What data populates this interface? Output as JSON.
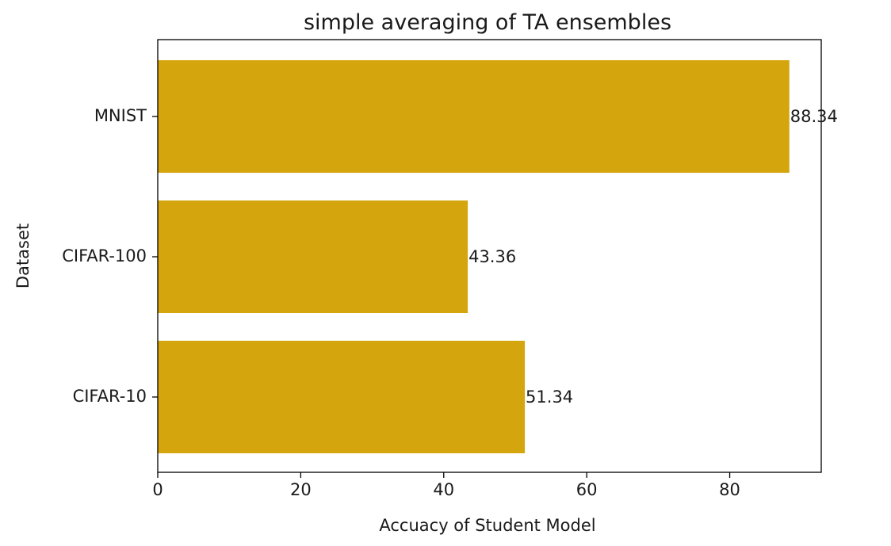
{
  "chart_data": {
    "type": "bar",
    "orientation": "horizontal",
    "title": "simple averaging of TA ensembles",
    "xlabel": "Accuacy of Student Model",
    "ylabel": "Dataset",
    "categories": [
      "CIFAR-10",
      "CIFAR-100",
      "MNIST"
    ],
    "values": [
      51.34,
      43.36,
      88.34
    ],
    "value_labels": [
      "51.34",
      "43.36",
      "88.34"
    ],
    "xlim": [
      0,
      92.8
    ],
    "xticks": [
      0,
      20,
      40,
      60,
      80
    ],
    "xtick_labels": [
      "0",
      "20",
      "40",
      "60",
      "80"
    ],
    "bar_color": "#d4a50c",
    "grid": false,
    "legend": "none"
  }
}
